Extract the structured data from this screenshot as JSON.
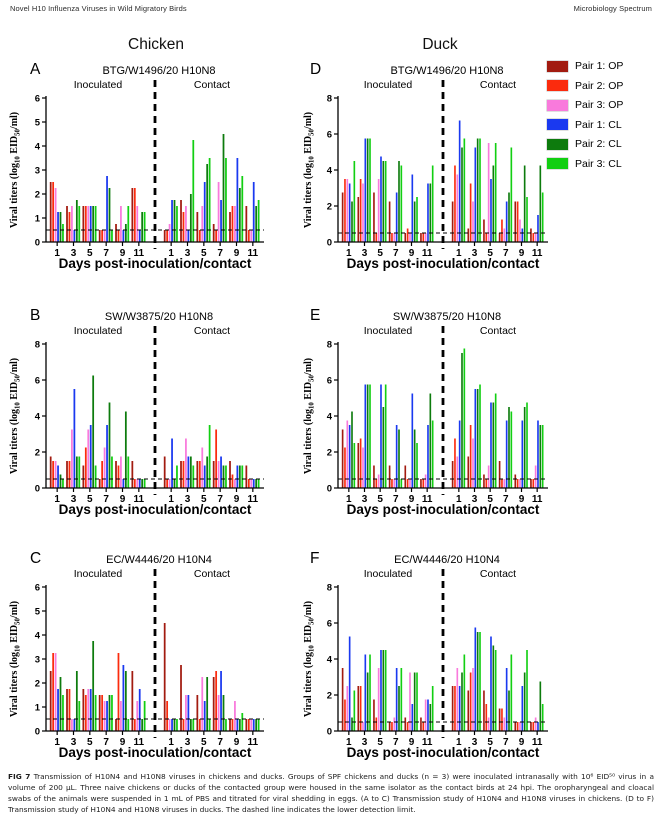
{
  "page": {
    "header_left": "Novel H10 Influenza Viruses in Wild Migratory Birds",
    "header_right": "Microbiology Spectrum"
  },
  "columns": {
    "left": "Chicken",
    "right": "Duck"
  },
  "legend": [
    {
      "label": "Pair 1: OP",
      "color": "#A21B10"
    },
    {
      "label": "Pair 2: OP",
      "color": "#FB2B0D"
    },
    {
      "label": "Pair 3: OP",
      "color": "#F97ADC"
    },
    {
      "label": "Pair 1: CL",
      "color": "#1A39F0"
    },
    {
      "label": "Pair 2: CL",
      "color": "#0D7B0D"
    },
    {
      "label": "Pair 3: CL",
      "color": "#12CF12"
    }
  ],
  "axes": {
    "ylabel": "Viral titers (log10 EID50/ml)",
    "ylabel_parts": [
      {
        "t": "Viral titers (log"
      },
      {
        "t": "10",
        "sub": true
      },
      {
        "t": " EID"
      },
      {
        "t": "50",
        "sub": true
      },
      {
        "t": "/ml)"
      }
    ],
    "xlabel": "Days post-inoculation/contact",
    "sections": [
      "Inoculated",
      "Contact"
    ],
    "days": [
      1,
      3,
      5,
      7,
      9,
      11
    ],
    "detection_limit": 0.5,
    "grid": false
  },
  "chart_data": [
    {
      "id": "A",
      "type": "bar",
      "column": "Chicken",
      "title": "BTG/W1496/20 H10N8",
      "ylim": [
        0,
        6
      ],
      "yticks": [
        0,
        1,
        2,
        3,
        4,
        5,
        6
      ],
      "series": [
        "Pair 1: OP",
        "Pair 2: OP",
        "Pair 3: OP",
        "Pair 1: CL",
        "Pair 2: CL",
        "Pair 3: CL"
      ],
      "inoculated": [
        [
          2.5,
          2.5,
          2.25,
          1.25,
          1.25,
          0.75
        ],
        [
          1.5,
          1.25,
          1.5,
          0.5,
          1.75,
          1.5
        ],
        [
          1.5,
          1.5,
          1.5,
          1.5,
          1.5,
          1.5
        ],
        [
          0.5,
          0.5,
          0.5,
          2.75,
          2.25,
          0.5
        ],
        [
          0.75,
          0.5,
          1.5,
          0.5,
          0.75,
          1.5
        ],
        [
          2.25,
          2.25,
          1.5,
          0.5,
          1.25,
          1.25
        ]
      ],
      "contact": [
        [
          0.5,
          0.5,
          0.75,
          1.75,
          1.75,
          1.5
        ],
        [
          1.75,
          1.25,
          1.5,
          0.5,
          2.0,
          4.25
        ],
        [
          1.25,
          0.5,
          1.5,
          2.5,
          3.25,
          3.5
        ],
        [
          0.75,
          0.5,
          2.5,
          1.75,
          4.5,
          3.5
        ],
        [
          1.25,
          1.5,
          1.5,
          3.5,
          2.25,
          2.75
        ],
        [
          1.5,
          0.5,
          0.5,
          2.5,
          1.5,
          1.75
        ]
      ]
    },
    {
      "id": "B",
      "type": "bar",
      "column": "Chicken",
      "title": "SW/W3875/20 H10N8",
      "ylim": [
        0,
        8
      ],
      "yticks": [
        0,
        2,
        4,
        6,
        8
      ],
      "series": [
        "Pair 1: OP",
        "Pair 2: OP",
        "Pair 3: OP",
        "Pair 1: CL",
        "Pair 2: CL",
        "Pair 3: CL"
      ],
      "inoculated": [
        [
          1.75,
          1.5,
          1.5,
          1.25,
          0.75,
          0.5
        ],
        [
          1.5,
          1.5,
          3.25,
          5.5,
          1.75,
          1.75
        ],
        [
          1.25,
          2.25,
          3.25,
          3.5,
          6.25,
          1.25
        ],
        [
          0.5,
          1.5,
          2.25,
          3.5,
          4.75,
          1.75
        ],
        [
          1.5,
          1.25,
          1.75,
          0.5,
          4.25,
          1.75
        ],
        [
          1.5,
          0.5,
          0.5,
          0.5,
          0.5,
          0.5
        ]
      ],
      "contact": [
        [
          1.75,
          0.5,
          0.5,
          2.75,
          0.5,
          1.25
        ],
        [
          1.5,
          1.5,
          2.75,
          1.75,
          1.75,
          1.25
        ],
        [
          1.5,
          1.5,
          2.25,
          1.25,
          1.75,
          3.5
        ],
        [
          1.5,
          3.25,
          1.5,
          1.75,
          1.25,
          1.25
        ],
        [
          1.5,
          0.75,
          0.5,
          1.25,
          1.25,
          1.25
        ],
        [
          1.25,
          0.5,
          0.5,
          0.5,
          0.5,
          0.5
        ]
      ]
    },
    {
      "id": "C",
      "type": "bar",
      "column": "Chicken",
      "title": "EC/W4446/20 H10N4",
      "ylim": [
        0,
        6
      ],
      "yticks": [
        0,
        1,
        2,
        3,
        4,
        5,
        6
      ],
      "series": [
        "Pair 1: OP",
        "Pair 2: OP",
        "Pair 3: OP",
        "Pair 1: CL",
        "Pair 2: CL",
        "Pair 3: CL"
      ],
      "inoculated": [
        [
          2.5,
          3.25,
          3.25,
          1.75,
          2.25,
          1.5
        ],
        [
          1.75,
          1.75,
          0.5,
          0.5,
          2.5,
          1.25
        ],
        [
          1.75,
          1.5,
          1.75,
          1.75,
          3.75,
          1.5
        ],
        [
          1.5,
          1.5,
          1.25,
          1.25,
          1.5,
          1.5
        ],
        [
          0.5,
          3.25,
          1.25,
          2.75,
          2.5,
          0.5
        ],
        [
          2.5,
          0.5,
          1.25,
          1.75,
          0.5,
          1.25
        ]
      ],
      "contact": [
        [
          4.5,
          1.25,
          0.5,
          0.5,
          0.5,
          0.5
        ],
        [
          2.75,
          0.5,
          1.5,
          1.5,
          0.5,
          0.5
        ],
        [
          1.5,
          0.5,
          2.25,
          1.25,
          2.25,
          0.5
        ],
        [
          2.25,
          2.5,
          1.5,
          2.5,
          1.5,
          0.5
        ],
        [
          0.5,
          0.5,
          1.25,
          0.5,
          0.5,
          0.75
        ],
        [
          0.5,
          0.5,
          0.5,
          0.5,
          0.5,
          0.5
        ]
      ]
    },
    {
      "id": "D",
      "type": "bar",
      "column": "Duck",
      "title": "BTG/W1496/20 H10N8",
      "ylim": [
        0,
        8
      ],
      "yticks": [
        0,
        2,
        4,
        6,
        8
      ],
      "series": [
        "Pair 1: OP",
        "Pair 2: OP",
        "Pair 3: OP",
        "Pair 1: CL",
        "Pair 2: CL",
        "Pair 3: CL"
      ],
      "inoculated": [
        [
          2.75,
          3.5,
          3.5,
          3.25,
          2.25,
          4.5
        ],
        [
          2.5,
          3.5,
          3.25,
          5.75,
          5.75,
          5.75
        ],
        [
          2.75,
          0.5,
          3.5,
          4.75,
          4.5,
          4.5
        ],
        [
          2.25,
          0.5,
          0.5,
          2.75,
          4.5,
          4.25
        ],
        [
          0.5,
          0.75,
          0.5,
          3.75,
          2.25,
          2.5
        ],
        [
          0.5,
          0.5,
          0.5,
          3.25,
          3.25,
          4.25
        ]
      ],
      "contact": [
        [
          2.25,
          4.25,
          3.75,
          6.75,
          5.25,
          5.75
        ],
        [
          0.75,
          3.25,
          2.25,
          5.25,
          5.75,
          5.75
        ],
        [
          1.25,
          0.5,
          5.5,
          3.5,
          4.25,
          5.5
        ],
        [
          0.5,
          1.25,
          0.75,
          2.25,
          2.75,
          5.25
        ],
        [
          2.25,
          2.25,
          1.25,
          0.75,
          4.25,
          2.5
        ],
        [
          0.75,
          0.5,
          0.5,
          1.5,
          4.25,
          2.75
        ]
      ]
    },
    {
      "id": "E",
      "type": "bar",
      "column": "Duck",
      "title": "SW/W3875/20 H10N8",
      "ylim": [
        0,
        8
      ],
      "yticks": [
        0,
        2,
        4,
        6,
        8
      ],
      "series": [
        "Pair 1: OP",
        "Pair 2: OP",
        "Pair 3: OP",
        "Pair 1: CL",
        "Pair 2: CL",
        "Pair 3: CL"
      ],
      "inoculated": [
        [
          3.25,
          2.25,
          3.75,
          3.5,
          4.25,
          2.5
        ],
        [
          2.5,
          2.75,
          2.25,
          5.75,
          5.75,
          5.75
        ],
        [
          1.25,
          0.5,
          0.75,
          5.75,
          4.5,
          5.75
        ],
        [
          1.25,
          0.5,
          0.5,
          3.5,
          3.25,
          0.5
        ],
        [
          1.25,
          0.5,
          0.5,
          5.25,
          3.25,
          2.5
        ],
        [
          0.5,
          0.5,
          0.75,
          3.5,
          5.25,
          3.75
        ]
      ],
      "contact": [
        [
          1.5,
          2.75,
          1.75,
          3.75,
          7.5,
          7.75
        ],
        [
          1.75,
          3.5,
          2.75,
          5.5,
          5.5,
          5.75
        ],
        [
          0.75,
          0.5,
          1.25,
          4.75,
          4.75,
          5.25
        ],
        [
          1.5,
          0.5,
          0.5,
          3.75,
          4.5,
          4.25
        ],
        [
          0.75,
          0.5,
          0.5,
          3.75,
          4.5,
          4.75
        ],
        [
          0.5,
          0.5,
          1.25,
          3.75,
          3.5,
          3.5
        ]
      ]
    },
    {
      "id": "F",
      "type": "bar",
      "column": "Duck",
      "title": "EC/W4446/20 H10N4",
      "ylim": [
        0,
        8
      ],
      "yticks": [
        0,
        2,
        4,
        6,
        8
      ],
      "series": [
        "Pair 1: OP",
        "Pair 2: OP",
        "Pair 3: OP",
        "Pair 1: CL",
        "Pair 2: CL",
        "Pair 3: CL"
      ],
      "inoculated": [
        [
          3.5,
          1.75,
          2.5,
          5.25,
          0.75,
          2.25
        ],
        [
          2.5,
          2.5,
          0.5,
          4.25,
          3.25,
          4.25
        ],
        [
          1.75,
          0.75,
          3.5,
          4.5,
          4.5,
          4.5
        ],
        [
          0.5,
          0.5,
          0.75,
          3.5,
          2.5,
          3.5
        ],
        [
          0.75,
          0.5,
          3.25,
          1.5,
          3.25,
          3.25
        ],
        [
          0.75,
          0.5,
          1.75,
          1.75,
          1.5,
          2.5
        ]
      ],
      "contact": [
        [
          2.5,
          2.5,
          3.5,
          2.5,
          3.25,
          4.25
        ],
        [
          2.25,
          3.25,
          3.5,
          5.75,
          5.5,
          5.5
        ],
        [
          2.25,
          1.5,
          0.75,
          5.25,
          4.75,
          4.5
        ],
        [
          1.25,
          1.25,
          0.75,
          3.5,
          2.25,
          4.25
        ],
        [
          0.5,
          0.5,
          0.5,
          2.5,
          3.25,
          4.5
        ],
        [
          0.5,
          0.5,
          0.75,
          0.5,
          2.75,
          1.5
        ]
      ]
    }
  ],
  "caption": {
    "label": "FIG 7",
    "text": "Transmission of H10N4 and H10N8 viruses in chickens and ducks. Groups of SPF chickens and ducks (n = 3) were inoculated intranasally with 10⁶ EID⁵⁰ virus in a volume of 200 μL. Three naive chickens or ducks of the contacted group were housed in the same isolator as the contact birds at 24 hpi. The oropharyngeal and cloacal swabs of the animals were suspended in 1 mL of PBS and titrated for viral shedding in eggs. (A to C) Transmission study of H10N4 and H10N8 viruses in chickens. (D to F) Transmission study of H10N4 and H10N8 viruses in ducks. The dashed line indicates the lower detection limit."
  }
}
